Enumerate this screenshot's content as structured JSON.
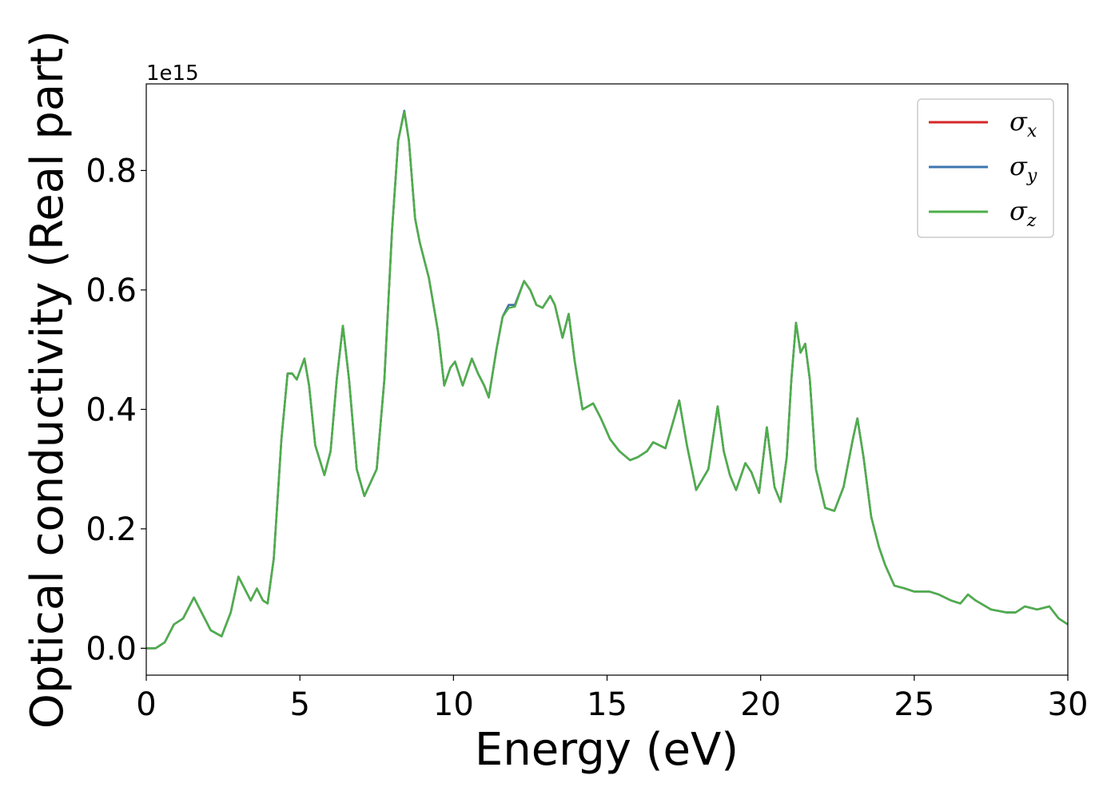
{
  "chart_data": {
    "type": "line",
    "title": "",
    "xlabel": "Energy (eV)",
    "ylabel": "Optical conductivity (Real part)",
    "y_offset_text": "1e15",
    "y_scale_factor": 1000000000000000.0,
    "xlim": [
      0,
      30
    ],
    "ylim": [
      -0.045,
      0.945
    ],
    "x_ticks": [
      0,
      5,
      10,
      15,
      20,
      25,
      30
    ],
    "x_tick_labels": [
      "0",
      "5",
      "10",
      "15",
      "20",
      "25",
      "30"
    ],
    "y_ticks": [
      0.0,
      0.2,
      0.4,
      0.6,
      0.8
    ],
    "y_tick_labels": [
      "0.0",
      "0.2",
      "0.4",
      "0.6",
      "0.8"
    ],
    "grid": false,
    "legend_position": "top-right",
    "x": [
      0,
      0.3,
      0.6,
      0.9,
      1.2,
      1.55,
      1.8,
      2.1,
      2.45,
      2.75,
      3.0,
      3.2,
      3.4,
      3.6,
      3.8,
      3.95,
      4.15,
      4.4,
      4.6,
      4.75,
      4.9,
      5.15,
      5.3,
      5.5,
      5.8,
      6.0,
      6.2,
      6.4,
      6.6,
      6.85,
      7.1,
      7.5,
      7.75,
      8.0,
      8.2,
      8.4,
      8.55,
      8.75,
      8.9,
      9.2,
      9.5,
      9.7,
      9.9,
      10.05,
      10.3,
      10.6,
      10.8,
      11.0,
      11.15,
      11.4,
      11.6,
      11.8,
      12.0,
      12.3,
      12.5,
      12.7,
      12.9,
      13.15,
      13.3,
      13.55,
      13.75,
      13.95,
      14.2,
      14.55,
      14.8,
      15.1,
      15.4,
      15.75,
      16.0,
      16.3,
      16.5,
      16.9,
      17.1,
      17.35,
      17.6,
      17.9,
      18.3,
      18.6,
      18.8,
      19.0,
      19.2,
      19.5,
      19.7,
      19.95,
      20.2,
      20.45,
      20.65,
      20.85,
      21.0,
      21.15,
      21.3,
      21.45,
      21.6,
      21.8,
      22.1,
      22.4,
      22.7,
      23.0,
      23.15,
      23.35,
      23.6,
      23.85,
      24.05,
      24.35,
      24.7,
      25.0,
      25.5,
      25.8,
      26.2,
      26.5,
      26.75,
      27.0,
      27.5,
      28.0,
      28.3,
      28.6,
      29.0,
      29.4,
      29.7,
      30.0
    ],
    "series": [
      {
        "name": "σx",
        "color": "#d62728",
        "values": [
          0.0,
          0.0,
          0.01,
          0.04,
          0.05,
          0.085,
          0.06,
          0.03,
          0.02,
          0.06,
          0.12,
          0.1,
          0.08,
          0.1,
          0.08,
          0.075,
          0.15,
          0.35,
          0.46,
          0.46,
          0.45,
          0.485,
          0.44,
          0.34,
          0.29,
          0.33,
          0.45,
          0.54,
          0.45,
          0.3,
          0.255,
          0.3,
          0.45,
          0.7,
          0.85,
          0.9,
          0.85,
          0.72,
          0.68,
          0.62,
          0.53,
          0.44,
          0.47,
          0.48,
          0.44,
          0.485,
          0.46,
          0.44,
          0.42,
          0.5,
          0.555,
          0.575,
          0.575,
          0.615,
          0.6,
          0.575,
          0.57,
          0.59,
          0.575,
          0.52,
          0.56,
          0.48,
          0.4,
          0.41,
          0.385,
          0.35,
          0.33,
          0.315,
          0.32,
          0.33,
          0.345,
          0.335,
          0.37,
          0.415,
          0.34,
          0.265,
          0.3,
          0.405,
          0.33,
          0.29,
          0.265,
          0.31,
          0.295,
          0.26,
          0.37,
          0.27,
          0.245,
          0.32,
          0.45,
          0.545,
          0.495,
          0.51,
          0.45,
          0.3,
          0.235,
          0.23,
          0.27,
          0.35,
          0.385,
          0.32,
          0.22,
          0.17,
          0.14,
          0.105,
          0.1,
          0.095,
          0.095,
          0.09,
          0.08,
          0.075,
          0.09,
          0.08,
          0.065,
          0.06,
          0.06,
          0.07,
          0.065,
          0.07,
          0.05,
          0.04
        ]
      },
      {
        "name": "σy",
        "color": "#3b75af",
        "values": [
          0.0,
          0.0,
          0.01,
          0.04,
          0.05,
          0.085,
          0.06,
          0.03,
          0.02,
          0.06,
          0.12,
          0.1,
          0.08,
          0.1,
          0.08,
          0.075,
          0.15,
          0.35,
          0.46,
          0.46,
          0.45,
          0.485,
          0.44,
          0.34,
          0.29,
          0.33,
          0.45,
          0.54,
          0.45,
          0.3,
          0.255,
          0.3,
          0.45,
          0.7,
          0.85,
          0.9,
          0.85,
          0.72,
          0.68,
          0.62,
          0.53,
          0.44,
          0.47,
          0.48,
          0.44,
          0.485,
          0.46,
          0.44,
          0.42,
          0.5,
          0.555,
          0.575,
          0.575,
          0.615,
          0.6,
          0.575,
          0.57,
          0.59,
          0.575,
          0.52,
          0.56,
          0.48,
          0.4,
          0.41,
          0.385,
          0.35,
          0.33,
          0.315,
          0.32,
          0.33,
          0.345,
          0.335,
          0.37,
          0.415,
          0.34,
          0.265,
          0.3,
          0.405,
          0.33,
          0.29,
          0.265,
          0.31,
          0.295,
          0.26,
          0.37,
          0.27,
          0.245,
          0.32,
          0.45,
          0.545,
          0.495,
          0.51,
          0.45,
          0.3,
          0.235,
          0.23,
          0.27,
          0.35,
          0.385,
          0.32,
          0.22,
          0.17,
          0.14,
          0.105,
          0.1,
          0.095,
          0.095,
          0.09,
          0.08,
          0.075,
          0.09,
          0.08,
          0.065,
          0.06,
          0.06,
          0.07,
          0.065,
          0.07,
          0.05,
          0.04
        ]
      },
      {
        "name": "σz",
        "color": "#4daf4a",
        "values": [
          0.0,
          0.0,
          0.01,
          0.04,
          0.05,
          0.085,
          0.06,
          0.03,
          0.02,
          0.06,
          0.12,
          0.1,
          0.08,
          0.1,
          0.08,
          0.075,
          0.15,
          0.35,
          0.46,
          0.46,
          0.45,
          0.485,
          0.44,
          0.34,
          0.29,
          0.33,
          0.45,
          0.54,
          0.45,
          0.3,
          0.255,
          0.3,
          0.45,
          0.7,
          0.85,
          0.898,
          0.85,
          0.72,
          0.68,
          0.62,
          0.53,
          0.44,
          0.47,
          0.48,
          0.44,
          0.485,
          0.46,
          0.44,
          0.42,
          0.5,
          0.555,
          0.57,
          0.572,
          0.615,
          0.6,
          0.575,
          0.57,
          0.59,
          0.575,
          0.52,
          0.56,
          0.48,
          0.4,
          0.41,
          0.385,
          0.35,
          0.33,
          0.315,
          0.32,
          0.33,
          0.345,
          0.335,
          0.37,
          0.415,
          0.34,
          0.265,
          0.3,
          0.405,
          0.33,
          0.29,
          0.265,
          0.31,
          0.295,
          0.26,
          0.37,
          0.27,
          0.245,
          0.32,
          0.45,
          0.545,
          0.495,
          0.51,
          0.45,
          0.3,
          0.235,
          0.23,
          0.27,
          0.35,
          0.385,
          0.32,
          0.22,
          0.17,
          0.14,
          0.105,
          0.1,
          0.095,
          0.095,
          0.09,
          0.08,
          0.075,
          0.09,
          0.08,
          0.065,
          0.06,
          0.06,
          0.07,
          0.065,
          0.07,
          0.05,
          0.04
        ]
      }
    ],
    "legend": [
      {
        "symbol": "σ",
        "sub": "x",
        "color": "#d62728"
      },
      {
        "symbol": "σ",
        "sub": "y",
        "color": "#3b75af"
      },
      {
        "symbol": "σ",
        "sub": "z",
        "color": "#4daf4a"
      }
    ]
  }
}
